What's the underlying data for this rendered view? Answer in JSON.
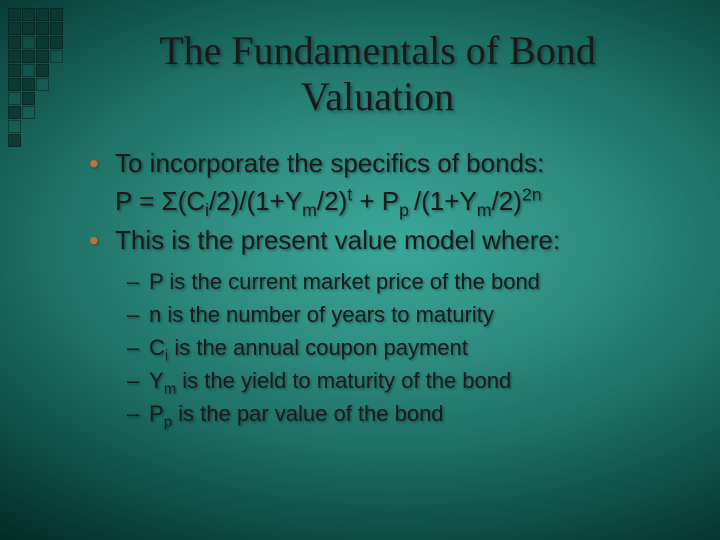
{
  "title": "The Fundamentals of Bond Valuation",
  "bullets": {
    "b1": "To incorporate the specifics of bonds:",
    "b2": "This is the present value model where:"
  },
  "formula": {
    "p1": "P = Σ(C",
    "sub_i": "i",
    "p2": "/2)/(1+Y",
    "sub_m1": "m",
    "p3": "/2)",
    "sup_t": "t",
    "p4": " + P",
    "sub_p": "p ",
    "p5": "/(1+Y",
    "sub_m2": "m",
    "p6": "/2)",
    "sup_2n": "2n"
  },
  "subs": {
    "s1": "P is the current market price of the bond",
    "s2": "n is the number of years to maturity",
    "s3a": "C",
    "s3sub": "i",
    "s3b": " is the annual coupon payment",
    "s4a": "Y",
    "s4sub": "m",
    "s4b": " is the yield to maturity of the bond",
    "s5a": "P",
    "s5sub": "p",
    "s5b": " is the par value of the bond"
  },
  "style": {
    "bullet_color": "#b8763a",
    "title_fontsize": 40,
    "body_fontsize": 26,
    "sub_fontsize": 22,
    "bg_center": "#3aa89a",
    "bg_edge": "#042a25"
  }
}
